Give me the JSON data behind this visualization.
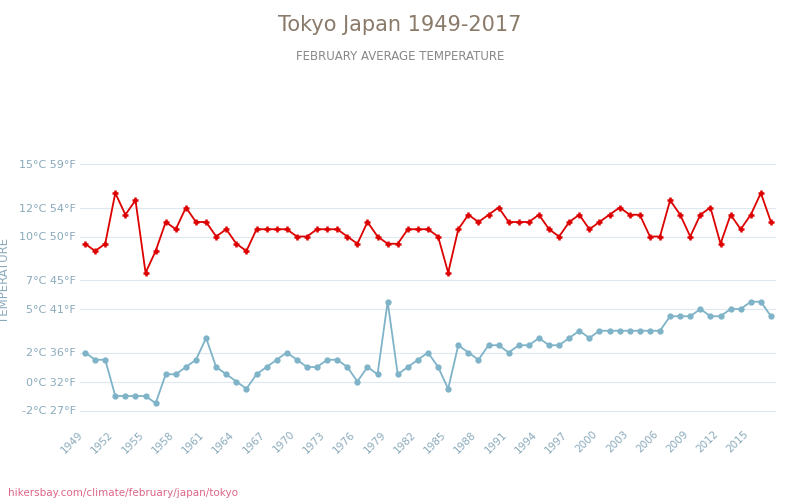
{
  "title": "Tokyo Japan 1949-2017",
  "subtitle": "FEBRUARY AVERAGE TEMPERATURE",
  "ylabel": "TEMPERATURE",
  "watermark": "hikersbay.com/climate/february/japan/tokyo",
  "years": [
    1949,
    1950,
    1951,
    1952,
    1953,
    1954,
    1955,
    1956,
    1957,
    1958,
    1959,
    1960,
    1961,
    1962,
    1963,
    1964,
    1965,
    1966,
    1967,
    1968,
    1969,
    1970,
    1971,
    1972,
    1973,
    1974,
    1975,
    1976,
    1977,
    1978,
    1979,
    1980,
    1981,
    1982,
    1983,
    1984,
    1985,
    1986,
    1987,
    1988,
    1989,
    1990,
    1991,
    1992,
    1993,
    1994,
    1995,
    1996,
    1997,
    1998,
    1999,
    2000,
    2001,
    2002,
    2003,
    2004,
    2005,
    2006,
    2007,
    2008,
    2009,
    2010,
    2011,
    2012,
    2013,
    2014,
    2015,
    2016,
    2017
  ],
  "day_temps": [
    9.5,
    9.0,
    9.5,
    13.0,
    11.5,
    12.5,
    7.5,
    9.0,
    11.0,
    10.5,
    12.0,
    11.0,
    11.0,
    10.0,
    10.5,
    9.5,
    9.0,
    10.5,
    10.5,
    10.5,
    10.5,
    10.0,
    10.0,
    10.5,
    10.5,
    10.5,
    10.0,
    9.5,
    11.0,
    10.0,
    9.5,
    9.5,
    10.5,
    10.5,
    10.5,
    10.0,
    7.5,
    10.5,
    11.5,
    11.0,
    11.5,
    12.0,
    11.0,
    11.0,
    11.0,
    11.5,
    10.5,
    10.0,
    11.0,
    11.5,
    10.5,
    11.0,
    11.5,
    12.0,
    11.5,
    11.5,
    10.0,
    10.0,
    12.5,
    11.5,
    10.0,
    11.5,
    12.0,
    9.5,
    11.5,
    10.5,
    11.5,
    13.0,
    11.0
  ],
  "night_temps": [
    2.0,
    1.5,
    1.5,
    -1.0,
    -1.0,
    -1.0,
    -1.0,
    -1.5,
    0.5,
    0.5,
    1.0,
    1.5,
    3.0,
    1.0,
    0.5,
    0.0,
    -0.5,
    0.5,
    1.0,
    1.5,
    2.0,
    1.5,
    1.0,
    1.0,
    1.5,
    1.5,
    1.0,
    0.0,
    1.0,
    0.5,
    5.5,
    0.5,
    1.0,
    1.5,
    2.0,
    1.0,
    -0.5,
    2.5,
    2.0,
    1.5,
    2.5,
    2.5,
    2.0,
    2.5,
    2.5,
    3.0,
    2.5,
    2.5,
    3.0,
    3.5,
    3.0,
    3.5,
    3.5,
    3.5,
    3.5,
    3.5,
    3.5,
    3.5,
    4.5,
    4.5,
    4.5,
    5.0,
    4.5,
    4.5,
    5.0,
    5.0,
    5.5,
    5.5,
    4.5
  ],
  "day_color": "#dd0000",
  "night_color": "#7fb3c8",
  "title_color": "#8a7a6a",
  "subtitle_color": "#888888",
  "ylabel_color": "#8aaabb",
  "tick_color": "#8aaabb",
  "grid_color": "#dde8f0",
  "bg_color": "#ffffff",
  "watermark_color": "#dd6688",
  "ylim": [
    -3,
    17
  ],
  "yticks_c": [
    -2,
    0,
    2,
    5,
    7,
    10,
    12,
    15
  ],
  "ytick_labels": [
    "-2°C 27°F",
    "0°C 32°F",
    "2°C 36°F",
    "5°C 41°F",
    "7°C 45°F",
    "10°C 50°F",
    "12°C 54°F",
    "15°C 59°F"
  ],
  "xtick_years": [
    1949,
    1952,
    1955,
    1958,
    1961,
    1964,
    1967,
    1970,
    1973,
    1976,
    1979,
    1982,
    1985,
    1988,
    1991,
    1994,
    1997,
    2000,
    2003,
    2006,
    2009,
    2012,
    2015
  ]
}
